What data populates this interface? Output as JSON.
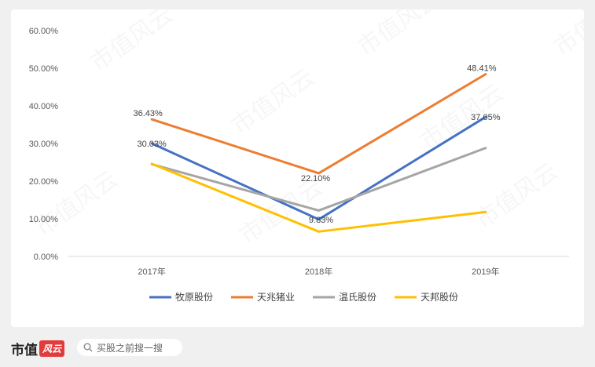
{
  "chart_data": {
    "type": "line",
    "categories": [
      "2017年",
      "2018年",
      "2019年"
    ],
    "ylim": [
      0,
      60
    ],
    "yticks": [
      "0.00%",
      "10.00%",
      "20.00%",
      "30.00%",
      "40.00%",
      "50.00%",
      "60.00%"
    ],
    "grid": false,
    "legend_position": "bottom",
    "series": [
      {
        "name": "牧原股份",
        "color": "#4472C4",
        "values": [
          30.03,
          9.83,
          37.05
        ],
        "labels": [
          "30.03%",
          "9.83%",
          "37.05%"
        ]
      },
      {
        "name": "天兆猪业",
        "color": "#ED7D31",
        "values": [
          36.43,
          22.1,
          48.41
        ],
        "labels": [
          "36.43%",
          "22.10%",
          "48.41%"
        ]
      },
      {
        "name": "温氏股份",
        "color": "#A5A5A5",
        "values": [
          24.5,
          12.2,
          28.8
        ],
        "labels": [
          "",
          "",
          ""
        ]
      },
      {
        "name": "天邦股份",
        "color": "#FFC000",
        "values": [
          24.6,
          6.6,
          11.8
        ],
        "labels": [
          "",
          "",
          ""
        ]
      }
    ]
  },
  "watermark": "市值风云",
  "footer": {
    "brand_text": "市值",
    "brand_seal": "风云",
    "search_text": "买股之前搜一搜"
  }
}
